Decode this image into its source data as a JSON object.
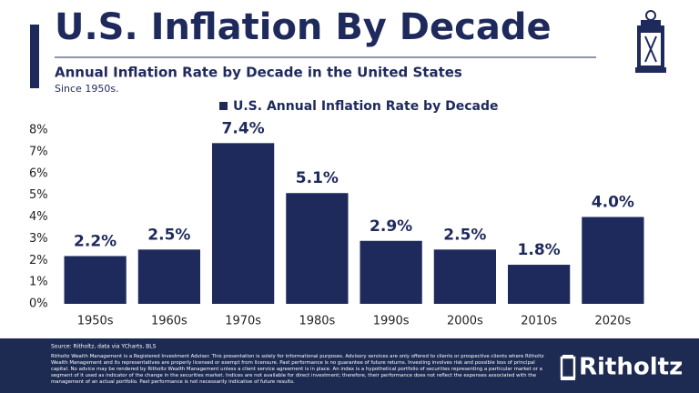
{
  "chart_data": {
    "type": "bar",
    "title": "U.S. Inflation By Decade",
    "subtitle": "Annual Inflation Rate by Decade in the United States",
    "caption": "Since 1950s.",
    "categories": [
      "1950s",
      "1960s",
      "1970s",
      "1980s",
      "1990s",
      "2000s",
      "2010s",
      "2020s"
    ],
    "series": [
      {
        "name": "U.S. Annual Inflation Rate by Decade",
        "color": "#1f2a5c",
        "values": [
          2.2,
          2.5,
          7.4,
          5.1,
          2.9,
          2.5,
          1.8,
          4.0
        ],
        "value_labels": [
          "2.2%",
          "2.5%",
          "7.4%",
          "5.1%",
          "2.9%",
          "2.5%",
          "1.8%",
          "4.0%"
        ]
      }
    ],
    "ylim": [
      0,
      8
    ],
    "yticks": [
      {
        "value": 0,
        "label": "0%"
      },
      {
        "value": 1,
        "label": "1%"
      },
      {
        "value": 2,
        "label": "2%"
      },
      {
        "value": 3,
        "label": "3%"
      },
      {
        "value": 4,
        "label": "4%"
      },
      {
        "value": 5,
        "label": "5%"
      },
      {
        "value": 6,
        "label": "6%"
      },
      {
        "value": 7,
        "label": "7%"
      },
      {
        "value": 8,
        "label": "8%"
      }
    ],
    "grid": false,
    "legend": "top"
  },
  "footer": {
    "source": "Source: Ritholtz, data via YCharts, BLS",
    "disclaimer": "Ritholtz Wealth Management is a Registered Investment Adviser. This presentation is solely for informational purposes. Advisory services are only offered to clients or prospective clients where Ritholtz Wealth Management and its representatives are properly licensed or exempt from licensure. Past performance is no guarantee of future returns. Investing involves risk and possible loss of principal capital. No advice may be rendered by Ritholtz Wealth Management unless a client service agreement is in place. An index is a hypothetical portfolio of securities representing a particular market or a segment of it used as indicator of the change in the securities market. Indices are not available for direct investment; therefore, their performance does not reflect the expenses associated with the management of an actual portfolio. Past performance is not necessarily indicative of future results.",
    "brand": "Ritholtz"
  }
}
